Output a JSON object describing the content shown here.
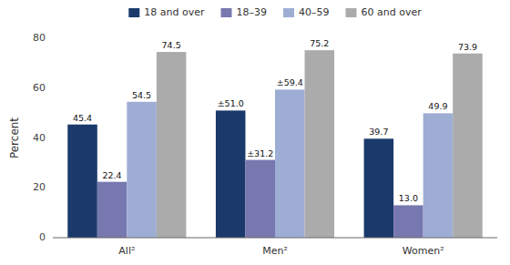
{
  "chart_data": {
    "type": "bar",
    "categories": [
      "All²",
      "Men²",
      "Women²"
    ],
    "series": [
      {
        "name": "18 and over",
        "color": "#1b3a6b",
        "values": [
          45.4,
          51.0,
          39.7
        ],
        "value_labels": [
          "45.4",
          "±51.0",
          "39.7"
        ]
      },
      {
        "name": "18–39",
        "color": "#7878b0",
        "values": [
          22.4,
          31.2,
          13.0
        ],
        "value_labels": [
          "22.4",
          "±31.2",
          "13.0"
        ]
      },
      {
        "name": "40–59",
        "color": "#9dadd4",
        "values": [
          54.5,
          59.4,
          49.9
        ],
        "value_labels": [
          "54.5",
          "±59.4",
          "49.9"
        ]
      },
      {
        "name": "60 and over",
        "color": "#ababab",
        "values": [
          74.5,
          75.2,
          73.9
        ],
        "value_labels": [
          "74.5",
          "75.2",
          "73.9"
        ]
      }
    ],
    "ylabel": "Percent",
    "ylim": [
      0,
      80
    ],
    "yticks": [
      0,
      20,
      40,
      60,
      80
    ],
    "grid": false,
    "legend": "top",
    "data_labels": true
  }
}
